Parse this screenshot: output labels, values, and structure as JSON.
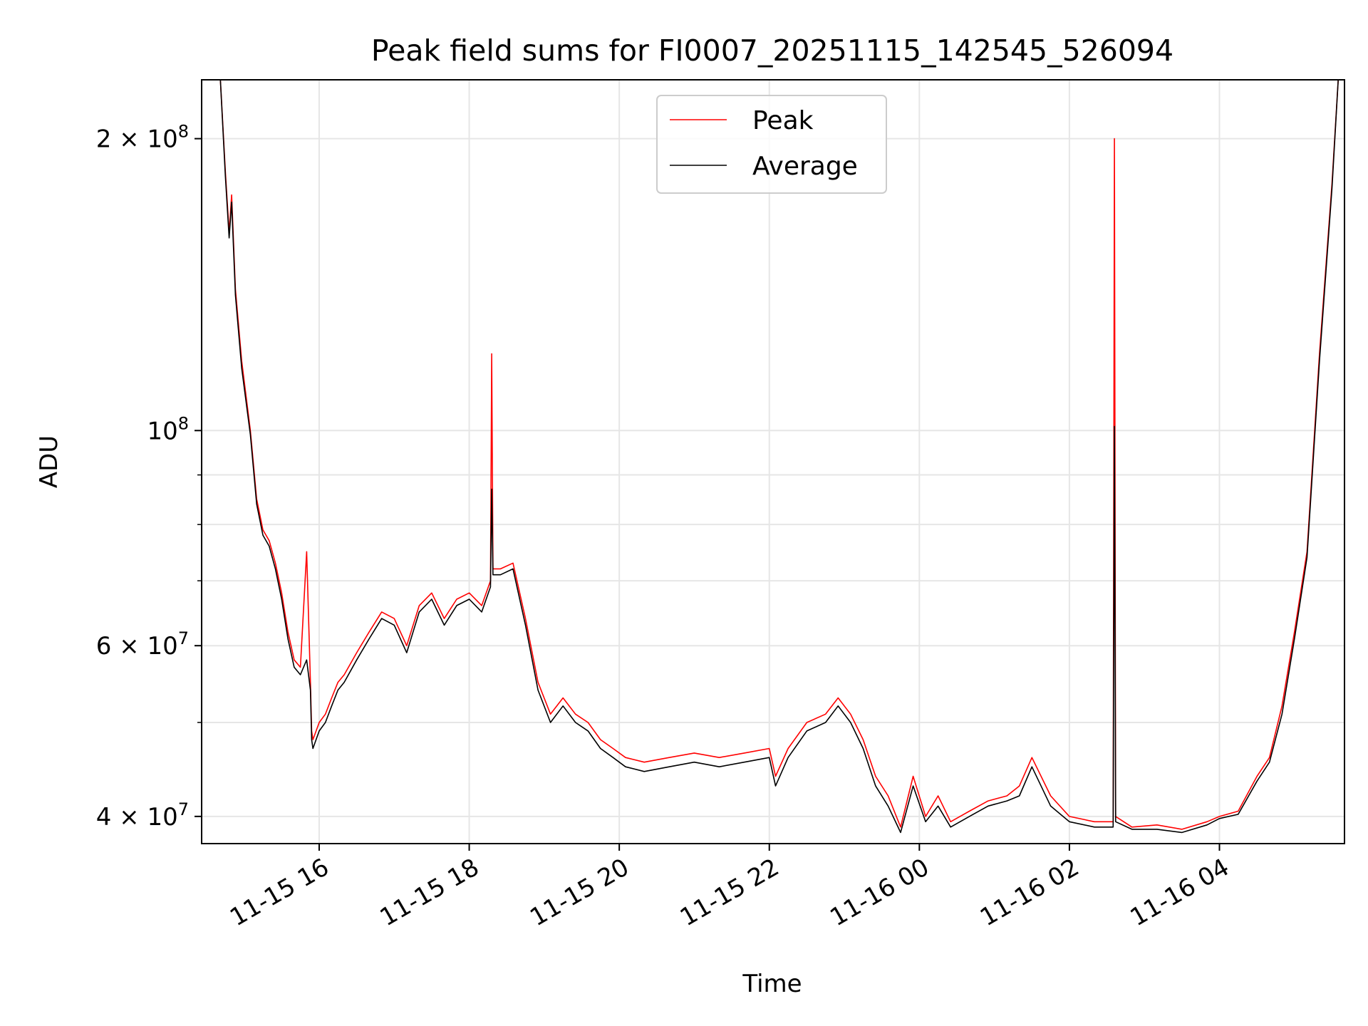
{
  "chart_data": {
    "type": "line",
    "title": "Peak field sums for FI0007_20251115_142545_526094",
    "xlabel": "Time",
    "ylabel": "ADU",
    "x_range": [
      "2025-11-15 14:26",
      "2025-11-16 05:40"
    ],
    "ylim": [
      37500000,
      230000000
    ],
    "y_scale": "log",
    "grid": true,
    "legend_position": "upper center",
    "x_ticks": [
      {
        "value": "2025-11-15 16:00",
        "label": "11-15 16"
      },
      {
        "value": "2025-11-15 18:00",
        "label": "11-15 18"
      },
      {
        "value": "2025-11-15 20:00",
        "label": "11-15 20"
      },
      {
        "value": "2025-11-15 22:00",
        "label": "11-15 22"
      },
      {
        "value": "2025-11-16 00:00",
        "label": "11-16 00"
      },
      {
        "value": "2025-11-16 02:00",
        "label": "11-16 02"
      },
      {
        "value": "2025-11-16 04:00",
        "label": "11-16 04"
      }
    ],
    "y_ticks": [
      {
        "value": 40000000,
        "mantissa": "4",
        "exponent": "7"
      },
      {
        "value": 60000000,
        "mantissa": "6",
        "exponent": "7"
      },
      {
        "value": 100000000,
        "mantissa": "",
        "exponent": "8"
      },
      {
        "value": 200000000,
        "mantissa": "2",
        "exponent": "8"
      }
    ],
    "y_minor_ticks": [
      50000000,
      70000000,
      80000000,
      90000000
    ],
    "series": [
      {
        "name": "Peak",
        "color": "#ff0000",
        "x": [
          "2025-11-15 14:41",
          "2025-11-15 14:45",
          "2025-11-15 14:48",
          "2025-11-15 14:50",
          "2025-11-15 14:53",
          "2025-11-15 14:58",
          "2025-11-15 15:05",
          "2025-11-15 15:10",
          "2025-11-15 15:15",
          "2025-11-15 15:20",
          "2025-11-15 15:25",
          "2025-11-15 15:30",
          "2025-11-15 15:35",
          "2025-11-15 15:40",
          "2025-11-15 15:45",
          "2025-11-15 15:50",
          "2025-11-15 15:53",
          "2025-11-15 15:54",
          "2025-11-15 15:55",
          "2025-11-15 16:00",
          "2025-11-15 16:05",
          "2025-11-15 16:10",
          "2025-11-15 16:15",
          "2025-11-15 16:20",
          "2025-11-15 16:30",
          "2025-11-15 16:40",
          "2025-11-15 16:50",
          "2025-11-15 17:00",
          "2025-11-15 17:10",
          "2025-11-15 17:20",
          "2025-11-15 17:30",
          "2025-11-15 17:40",
          "2025-11-15 17:50",
          "2025-11-15 18:00",
          "2025-11-15 18:10",
          "2025-11-15 18:17",
          "2025-11-15 18:18",
          "2025-11-15 18:19",
          "2025-11-15 18:25",
          "2025-11-15 18:35",
          "2025-11-15 18:45",
          "2025-11-15 18:55",
          "2025-11-15 19:05",
          "2025-11-15 19:15",
          "2025-11-15 19:25",
          "2025-11-15 19:35",
          "2025-11-15 19:45",
          "2025-11-15 19:55",
          "2025-11-15 20:05",
          "2025-11-15 20:20",
          "2025-11-15 20:40",
          "2025-11-15 21:00",
          "2025-11-15 21:20",
          "2025-11-15 21:40",
          "2025-11-15 22:00",
          "2025-11-15 22:05",
          "2025-11-15 22:15",
          "2025-11-15 22:30",
          "2025-11-15 22:45",
          "2025-11-15 22:55",
          "2025-11-15 23:05",
          "2025-11-15 23:15",
          "2025-11-15 23:25",
          "2025-11-15 23:35",
          "2025-11-15 23:45",
          "2025-11-15 23:55",
          "2025-11-16 00:05",
          "2025-11-16 00:15",
          "2025-11-16 00:25",
          "2025-11-16 00:40",
          "2025-11-16 00:55",
          "2025-11-16 01:10",
          "2025-11-16 01:20",
          "2025-11-16 01:30",
          "2025-11-16 01:45",
          "2025-11-16 02:00",
          "2025-11-16 02:20",
          "2025-11-16 02:35",
          "2025-11-16 02:36",
          "2025-11-16 02:37",
          "2025-11-16 02:50",
          "2025-11-16 03:10",
          "2025-11-16 03:30",
          "2025-11-16 03:50",
          "2025-11-16 04:00",
          "2025-11-16 04:15",
          "2025-11-16 04:30",
          "2025-11-16 04:40",
          "2025-11-16 04:50",
          "2025-11-16 05:00",
          "2025-11-16 05:10",
          "2025-11-16 05:20",
          "2025-11-16 05:30",
          "2025-11-16 05:35"
        ],
        "values": [
          230000000,
          185000000,
          160000000,
          175000000,
          140000000,
          118000000,
          100000000,
          85000000,
          79000000,
          77000000,
          73000000,
          68000000,
          62000000,
          58000000,
          57000000,
          75000000,
          55000000,
          49000000,
          48000000,
          50000000,
          51000000,
          53000000,
          55000000,
          56000000,
          59000000,
          62000000,
          65000000,
          64000000,
          60000000,
          66000000,
          68000000,
          64000000,
          67000000,
          68000000,
          66000000,
          70000000,
          120000000,
          72000000,
          72000000,
          73000000,
          64000000,
          55000000,
          51000000,
          53000000,
          51000000,
          50000000,
          48000000,
          47000000,
          46000000,
          45500000,
          46000000,
          46500000,
          46000000,
          46500000,
          47000000,
          44000000,
          47000000,
          50000000,
          51000000,
          53000000,
          51000000,
          48000000,
          44000000,
          42000000,
          39000000,
          44000000,
          40000000,
          42000000,
          39500000,
          40500000,
          41500000,
          42000000,
          43000000,
          46000000,
          42000000,
          40000000,
          39500000,
          39500000,
          200000000,
          40000000,
          39000000,
          39200000,
          38800000,
          39500000,
          40000000,
          40500000,
          44000000,
          46000000,
          52000000,
          62000000,
          75000000,
          120000000,
          180000000,
          230000000
        ]
      },
      {
        "name": "Average",
        "color": "#000000",
        "x": [
          "2025-11-15 14:41",
          "2025-11-15 14:45",
          "2025-11-15 14:48",
          "2025-11-15 14:50",
          "2025-11-15 14:53",
          "2025-11-15 14:58",
          "2025-11-15 15:05",
          "2025-11-15 15:10",
          "2025-11-15 15:15",
          "2025-11-15 15:20",
          "2025-11-15 15:25",
          "2025-11-15 15:30",
          "2025-11-15 15:35",
          "2025-11-15 15:40",
          "2025-11-15 15:45",
          "2025-11-15 15:50",
          "2025-11-15 15:53",
          "2025-11-15 15:54",
          "2025-11-15 15:55",
          "2025-11-15 16:00",
          "2025-11-15 16:05",
          "2025-11-15 16:10",
          "2025-11-15 16:15",
          "2025-11-15 16:20",
          "2025-11-15 16:30",
          "2025-11-15 16:40",
          "2025-11-15 16:50",
          "2025-11-15 17:00",
          "2025-11-15 17:10",
          "2025-11-15 17:20",
          "2025-11-15 17:30",
          "2025-11-15 17:40",
          "2025-11-15 17:50",
          "2025-11-15 18:00",
          "2025-11-15 18:10",
          "2025-11-15 18:17",
          "2025-11-15 18:18",
          "2025-11-15 18:19",
          "2025-11-15 18:25",
          "2025-11-15 18:35",
          "2025-11-15 18:45",
          "2025-11-15 18:55",
          "2025-11-15 19:05",
          "2025-11-15 19:15",
          "2025-11-15 19:25",
          "2025-11-15 19:35",
          "2025-11-15 19:45",
          "2025-11-15 19:55",
          "2025-11-15 20:05",
          "2025-11-15 20:20",
          "2025-11-15 20:40",
          "2025-11-15 21:00",
          "2025-11-15 21:20",
          "2025-11-15 21:40",
          "2025-11-15 22:00",
          "2025-11-15 22:05",
          "2025-11-15 22:15",
          "2025-11-15 22:30",
          "2025-11-15 22:45",
          "2025-11-15 22:55",
          "2025-11-15 23:05",
          "2025-11-15 23:15",
          "2025-11-15 23:25",
          "2025-11-15 23:35",
          "2025-11-15 23:45",
          "2025-11-15 23:55",
          "2025-11-16 00:05",
          "2025-11-16 00:15",
          "2025-11-16 00:25",
          "2025-11-16 00:40",
          "2025-11-16 00:55",
          "2025-11-16 01:10",
          "2025-11-16 01:20",
          "2025-11-16 01:30",
          "2025-11-16 01:45",
          "2025-11-16 02:00",
          "2025-11-16 02:20",
          "2025-11-16 02:35",
          "2025-11-16 02:36",
          "2025-11-16 02:37",
          "2025-11-16 02:50",
          "2025-11-16 03:10",
          "2025-11-16 03:30",
          "2025-11-16 03:50",
          "2025-11-16 04:00",
          "2025-11-16 04:15",
          "2025-11-16 04:30",
          "2025-11-16 04:40",
          "2025-11-16 04:50",
          "2025-11-16 05:00",
          "2025-11-16 05:10",
          "2025-11-16 05:20",
          "2025-11-16 05:30",
          "2025-11-16 05:35"
        ],
        "values": [
          230000000,
          183000000,
          158000000,
          172000000,
          138000000,
          116000000,
          99000000,
          84000000,
          78000000,
          76000000,
          72000000,
          67000000,
          61000000,
          57000000,
          56000000,
          58000000,
          54000000,
          48000000,
          47000000,
          49000000,
          50000000,
          52000000,
          54000000,
          55000000,
          58000000,
          61000000,
          64000000,
          63000000,
          59000000,
          65000000,
          67000000,
          63000000,
          66000000,
          67000000,
          65000000,
          69000000,
          87000000,
          71000000,
          71000000,
          72000000,
          63000000,
          54000000,
          50000000,
          52000000,
          50000000,
          49000000,
          47000000,
          46000000,
          45000000,
          44500000,
          45000000,
          45500000,
          45000000,
          45500000,
          46000000,
          43000000,
          46000000,
          49000000,
          50000000,
          52000000,
          50000000,
          47000000,
          43000000,
          41000000,
          38500000,
          43000000,
          39500000,
          41000000,
          39000000,
          40000000,
          41000000,
          41500000,
          42000000,
          45000000,
          41000000,
          39500000,
          39000000,
          39000000,
          101000000,
          39500000,
          38800000,
          38800000,
          38500000,
          39200000,
          39800000,
          40200000,
          43500000,
          45500000,
          51000000,
          61000000,
          74000000,
          118000000,
          178000000,
          230000000
        ]
      }
    ]
  }
}
